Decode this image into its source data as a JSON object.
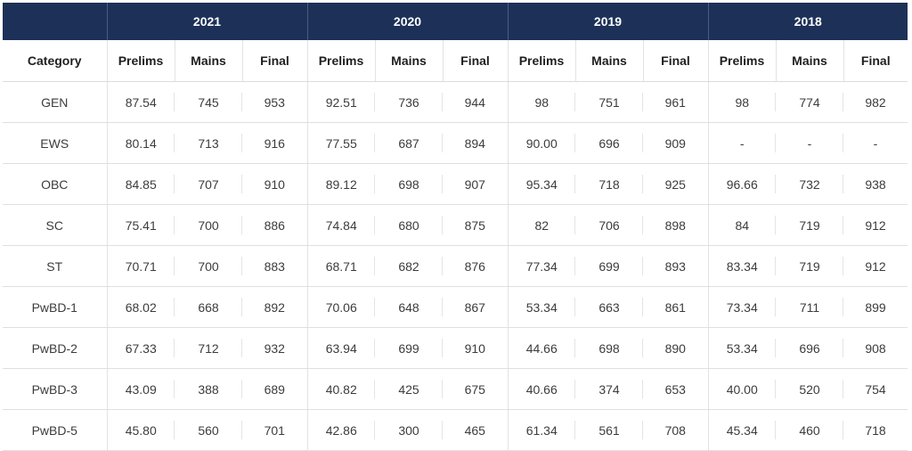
{
  "table": {
    "category_header": "Category",
    "years": [
      "2021",
      "2020",
      "2019",
      "2018"
    ],
    "sub_headers": [
      "Prelims",
      "Mains",
      "Final"
    ],
    "rows": [
      {
        "category": "GEN",
        "values": [
          "87.54",
          "745",
          "953",
          "92.51",
          "736",
          "944",
          "98",
          "751",
          "961",
          "98",
          "774",
          "982"
        ]
      },
      {
        "category": "EWS",
        "values": [
          "80.14",
          "713",
          "916",
          "77.55",
          "687",
          "894",
          "90.00",
          "696",
          "909",
          "-",
          "-",
          "-"
        ]
      },
      {
        "category": "OBC",
        "values": [
          "84.85",
          "707",
          "910",
          "89.12",
          "698",
          "907",
          "95.34",
          "718",
          "925",
          "96.66",
          "732",
          "938"
        ]
      },
      {
        "category": "SC",
        "values": [
          "75.41",
          "700",
          "886",
          "74.84",
          "680",
          "875",
          "82",
          "706",
          "898",
          "84",
          "719",
          "912"
        ]
      },
      {
        "category": "ST",
        "values": [
          "70.71",
          "700",
          "883",
          "68.71",
          "682",
          "876",
          "77.34",
          "699",
          "893",
          "83.34",
          "719",
          "912"
        ]
      },
      {
        "category": "PwBD-1",
        "values": [
          "68.02",
          "668",
          "892",
          "70.06",
          "648",
          "867",
          "53.34",
          "663",
          "861",
          "73.34",
          "711",
          "899"
        ]
      },
      {
        "category": "PwBD-2",
        "values": [
          "67.33",
          "712",
          "932",
          "63.94",
          "699",
          "910",
          "44.66",
          "698",
          "890",
          "53.34",
          "696",
          "908"
        ]
      },
      {
        "category": "PwBD-3",
        "values": [
          "43.09",
          "388",
          "689",
          "40.82",
          "425",
          "675",
          "40.66",
          "374",
          "653",
          "40.00",
          "520",
          "754"
        ]
      },
      {
        "category": "PwBD-5",
        "values": [
          "45.80",
          "560",
          "701",
          "42.86",
          "300",
          "465",
          "61.34",
          "561",
          "708",
          "45.34",
          "460",
          "718"
        ]
      }
    ]
  },
  "colors": {
    "header_bg": "#1d3158",
    "header_text": "#ffffff",
    "body_text": "#3c3c3c",
    "rule": "#e0e0e0"
  }
}
